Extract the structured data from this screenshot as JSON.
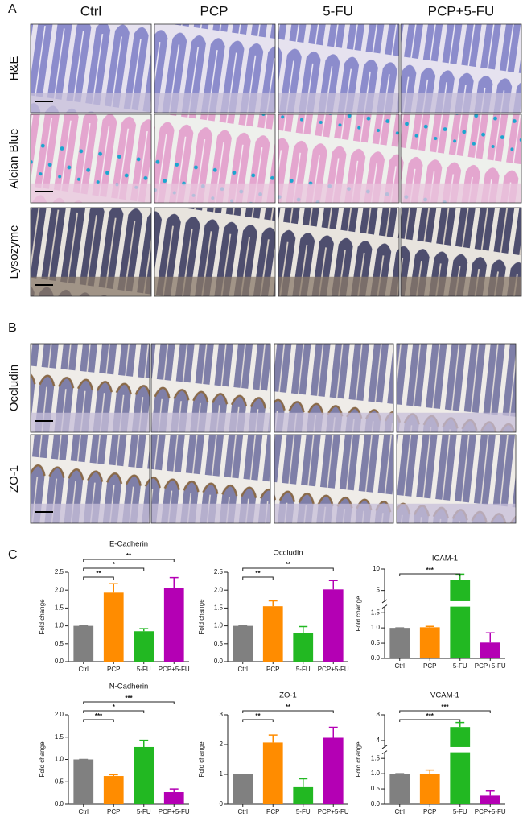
{
  "panel_labels": [
    "A",
    "B",
    "C"
  ],
  "column_labels": [
    "Ctrl",
    "PCP",
    "5-FU",
    "PCP+5-FU"
  ],
  "panel_a_rows": [
    "H&E",
    "Alcian Blue",
    "Lysozyme"
  ],
  "panel_b_rows": [
    "Occludin",
    "ZO-1"
  ],
  "chart_data": [
    {
      "type": "bar",
      "title": "E-Cadherin",
      "ylabel": "Fold change",
      "categories": [
        "Ctrl",
        "PCP",
        "5-FU",
        "PCP+5-FU"
      ],
      "values": [
        1.0,
        1.93,
        0.85,
        2.07
      ],
      "errors": [
        0,
        0.25,
        0.07,
        0.28
      ],
      "colors": [
        "#808080",
        "#ff8c00",
        "#22b822",
        "#b400b4"
      ],
      "ylim": [
        0,
        2.5
      ],
      "yticks": [
        {
          "value": 0,
          "label": "0.0"
        },
        0.5,
        {
          "value": 1,
          "label": "1.0"
        },
        1.5,
        {
          "value": 2,
          "label": "2.0"
        },
        2.5
      ],
      "significance": [
        {
          "groups": [
            0,
            1
          ],
          "label": "**"
        },
        {
          "groups": [
            0,
            2
          ],
          "label": "*"
        },
        {
          "groups": [
            0,
            3
          ],
          "label": "**"
        }
      ]
    },
    {
      "type": "bar",
      "title": "Occludin",
      "ylabel": "Fold change",
      "categories": [
        "Ctrl",
        "PCP",
        "5-FU",
        "PCP+5-FU"
      ],
      "values": [
        1.0,
        1.55,
        0.8,
        2.02
      ],
      "errors": [
        0,
        0.15,
        0.18,
        0.25
      ],
      "colors": [
        "#808080",
        "#ff8c00",
        "#22b822",
        "#b400b4"
      ],
      "ylim": [
        0,
        2.5
      ],
      "yticks": [
        {
          "value": 0,
          "label": "0.0"
        },
        0.5,
        {
          "value": 1,
          "label": "1.0"
        },
        1.5,
        {
          "value": 2,
          "label": "2.0"
        },
        2.5
      ],
      "significance": [
        {
          "groups": [
            0,
            1
          ],
          "label": "**"
        },
        {
          "groups": [
            0,
            3
          ],
          "label": "**"
        }
      ]
    },
    {
      "type": "bar",
      "title": "ICAM-1",
      "ylabel": "Fold change",
      "categories": [
        "Ctrl",
        "PCP",
        "5-FU",
        "PCP+5-FU"
      ],
      "values": [
        1.0,
        1.02,
        7.5,
        0.52
      ],
      "errors": [
        0,
        0.03,
        1.3,
        0.32
      ],
      "colors": [
        "#808080",
        "#ff8c00",
        "#22b822",
        "#b400b4"
      ],
      "ylim": [
        0,
        10
      ],
      "ybreak": [
        1.7,
        2.5
      ],
      "yticks": [
        {
          "value": 0,
          "label": "0.0"
        },
        0.5,
        {
          "value": 1,
          "label": "1.0"
        },
        1.5,
        5,
        10
      ],
      "significance": [
        {
          "groups": [
            0,
            2
          ],
          "label": "***"
        }
      ]
    },
    {
      "type": "bar",
      "title": "N-Cadherin",
      "ylabel": "Fold change",
      "categories": [
        "Ctrl",
        "PCP",
        "5-FU",
        "PCP+5-FU"
      ],
      "values": [
        1.0,
        0.63,
        1.28,
        0.27
      ],
      "errors": [
        0,
        0.03,
        0.15,
        0.07
      ],
      "colors": [
        "#808080",
        "#ff8c00",
        "#22b822",
        "#b400b4"
      ],
      "ylim": [
        0,
        2
      ],
      "yticks": [
        {
          "value": 0,
          "label": "0.0"
        },
        0.5,
        {
          "value": 1,
          "label": "1.0"
        },
        1.5,
        {
          "value": 2,
          "label": "2.0"
        }
      ],
      "significance": [
        {
          "groups": [
            0,
            1
          ],
          "label": "***"
        },
        {
          "groups": [
            0,
            2
          ],
          "label": "*"
        },
        {
          "groups": [
            0,
            3
          ],
          "label": "***"
        }
      ]
    },
    {
      "type": "bar",
      "title": "ZO-1",
      "ylabel": "Fold change",
      "categories": [
        "Ctrl",
        "PCP",
        "5-FU",
        "PCP+5-FU"
      ],
      "values": [
        1.0,
        2.07,
        0.57,
        2.23
      ],
      "errors": [
        0,
        0.25,
        0.28,
        0.35
      ],
      "colors": [
        "#808080",
        "#ff8c00",
        "#22b822",
        "#b400b4"
      ],
      "ylim": [
        0,
        3
      ],
      "yticks": [
        0,
        1,
        2,
        3
      ],
      "significance": [
        {
          "groups": [
            0,
            1
          ],
          "label": "**"
        },
        {
          "groups": [
            0,
            3
          ],
          "label": "**"
        }
      ]
    },
    {
      "type": "bar",
      "title": "VCAM-1",
      "ylabel": "Fold change",
      "categories": [
        "Ctrl",
        "PCP",
        "5-FU",
        "PCP+5-FU"
      ],
      "values": [
        1.0,
        1.0,
        6.1,
        0.28
      ],
      "errors": [
        0,
        0.12,
        0.7,
        0.15
      ],
      "colors": [
        "#808080",
        "#ff8c00",
        "#22b822",
        "#b400b4"
      ],
      "ylim": [
        0,
        8
      ],
      "ybreak": [
        1.7,
        3
      ],
      "yticks": [
        {
          "value": 0,
          "label": "0.0"
        },
        0.5,
        {
          "value": 1,
          "label": "1.0"
        },
        1.5,
        4,
        8
      ],
      "significance": [
        {
          "groups": [
            0,
            2
          ],
          "label": "***"
        },
        {
          "groups": [
            0,
            3
          ],
          "label": "***"
        }
      ]
    }
  ]
}
